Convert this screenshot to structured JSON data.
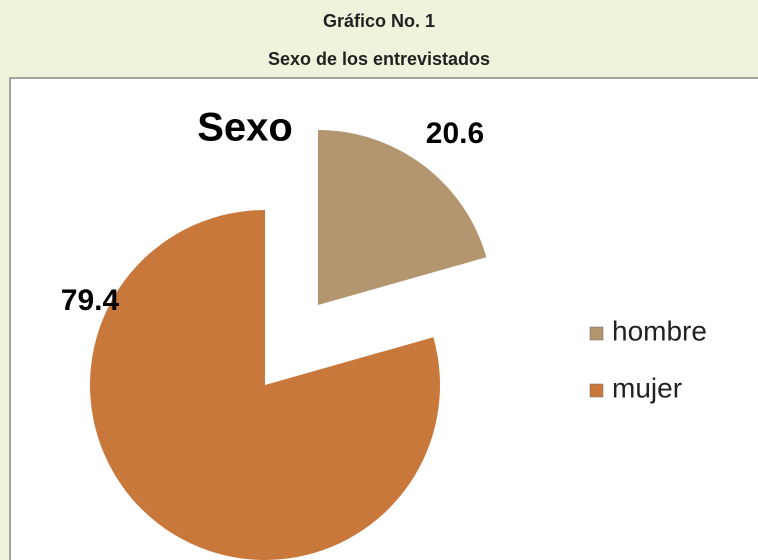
{
  "header": {
    "caption": "Gráfico No. 1",
    "title": "Sexo de los entrevistados"
  },
  "chart_data": {
    "type": "pie",
    "title": "Sexo",
    "categories": [
      "hombre",
      "mujer"
    ],
    "values": [
      20.6,
      79.4
    ],
    "colors": [
      "#b39670",
      "#c9783c"
    ],
    "legend": "right"
  }
}
